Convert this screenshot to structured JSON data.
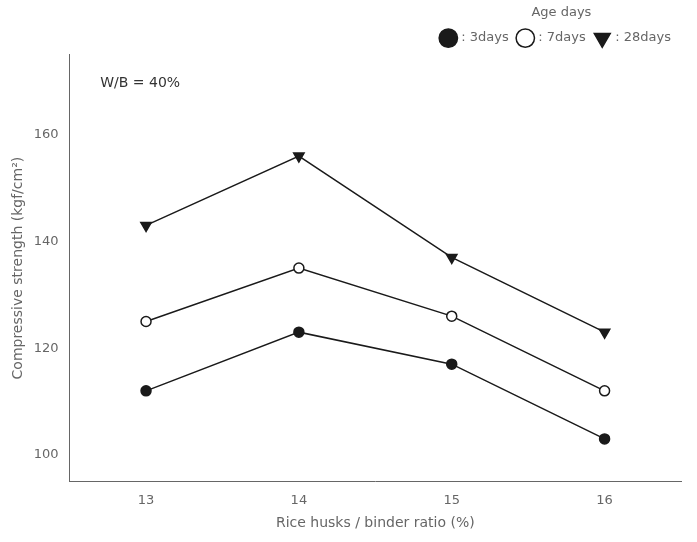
{
  "chart_data": {
    "type": "line",
    "x_label": "Rice husks / binder ratio (%)",
    "y_label": "Compressive strength (kgf/cm²)",
    "annotation": "W/B = 40%",
    "legend_title": "Age days",
    "legend": "upper right",
    "grid": false,
    "color": "#1a1a1a",
    "x": [
      13,
      14,
      15,
      16
    ],
    "series": [
      {
        "name": ": 3days",
        "values": [
          112,
          123,
          117,
          103
        ],
        "marker": "circle"
      },
      {
        "name": ": 7days",
        "values": [
          125,
          135,
          126,
          112
        ],
        "marker": "open_circle"
      },
      {
        "name": ": 28days",
        "values": [
          143,
          156,
          137,
          123
        ],
        "marker": "triangle_down"
      }
    ],
    "xlim": [
      12.5,
      16.5
    ],
    "xticks": [
      13,
      14,
      15,
      16
    ],
    "ylim": [
      95,
      175
    ],
    "yticks": [
      100,
      120,
      140,
      160
    ]
  }
}
